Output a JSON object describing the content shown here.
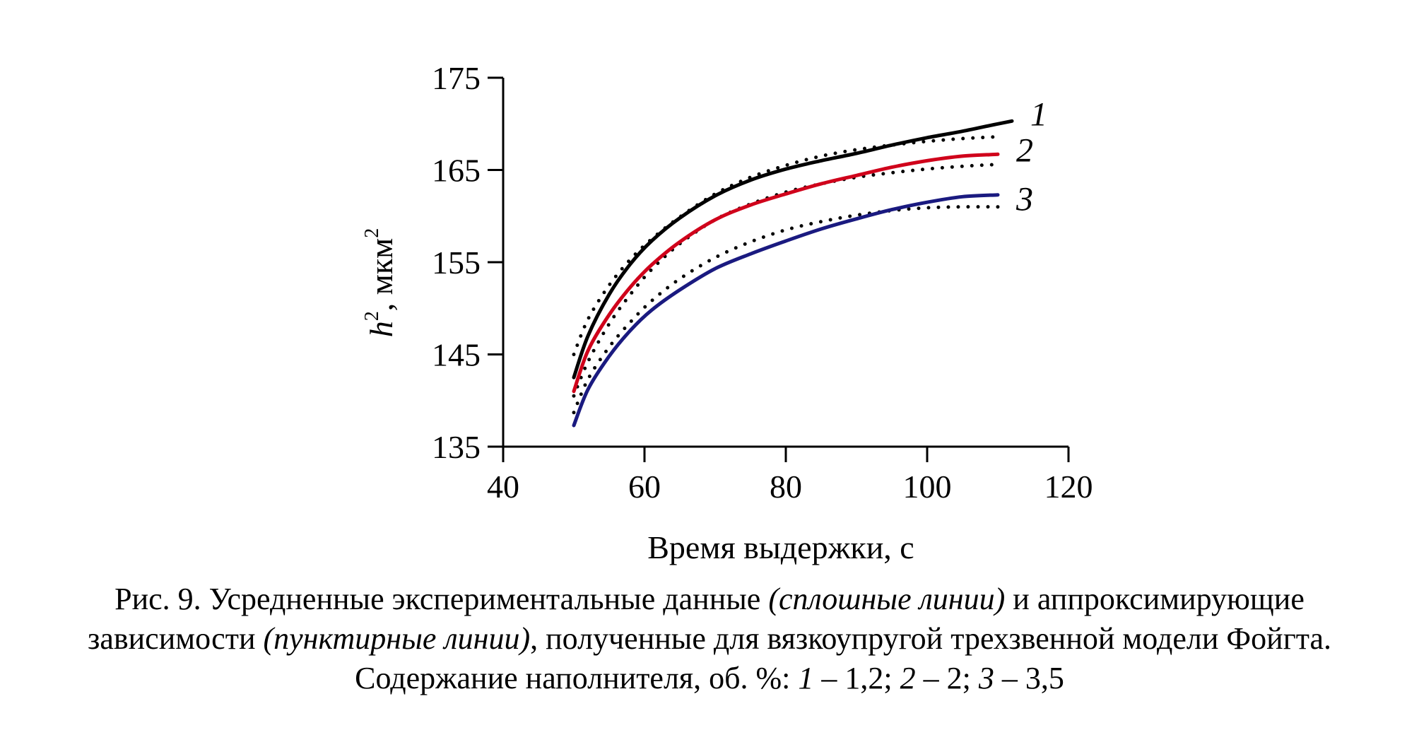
{
  "chart_data": {
    "type": "line",
    "title": "",
    "xlabel": "Время выдержки, с",
    "ylabel_base": "h",
    "ylabel_sup": "2",
    "ylabel_unit": ", мкм",
    "ylabel_unit_sup": "2",
    "xlim": [
      40,
      120
    ],
    "ylim": [
      135,
      175
    ],
    "xticks": [
      40,
      60,
      80,
      100,
      120
    ],
    "yticks": [
      135,
      145,
      155,
      165,
      175
    ],
    "grid": false,
    "series": [
      {
        "name": "1",
        "kind": "experimental",
        "color": "#000000",
        "x": [
          50,
          52,
          55,
          58,
          61,
          65,
          70,
          75,
          80,
          85,
          90,
          95,
          100,
          105,
          110,
          112
        ],
        "y": [
          142.5,
          147.0,
          151.5,
          154.8,
          157.3,
          159.8,
          162.2,
          163.9,
          165.1,
          166.0,
          166.8,
          167.7,
          168.5,
          169.2,
          170.0,
          170.3
        ]
      },
      {
        "name": "1",
        "kind": "approximation",
        "color": "#000000",
        "x": [
          50,
          52,
          55,
          58,
          61,
          65,
          70,
          75,
          80,
          85,
          90,
          95,
          100,
          105,
          110
        ],
        "y": [
          145.0,
          148.8,
          152.5,
          155.3,
          157.5,
          159.9,
          162.4,
          164.2,
          165.5,
          166.5,
          167.2,
          167.7,
          168.1,
          168.4,
          168.6
        ]
      },
      {
        "name": "2",
        "kind": "experimental",
        "color": "#d0021b",
        "x": [
          50,
          52,
          55,
          58,
          61,
          65,
          70,
          75,
          80,
          85,
          90,
          95,
          100,
          105,
          110
        ],
        "y": [
          141.0,
          145.4,
          149.3,
          152.3,
          154.7,
          157.2,
          159.6,
          161.2,
          162.4,
          163.5,
          164.4,
          165.3,
          166.0,
          166.5,
          166.7
        ]
      },
      {
        "name": "2",
        "kind": "approximation",
        "color": "#000000",
        "x": [
          50,
          52,
          55,
          58,
          61,
          65,
          70,
          75,
          80,
          85,
          90,
          95,
          100,
          105,
          110
        ],
        "y": [
          140.5,
          144.2,
          148.3,
          151.5,
          154.2,
          157.0,
          159.6,
          161.3,
          162.6,
          163.5,
          164.2,
          164.7,
          165.1,
          165.4,
          165.6
        ]
      },
      {
        "name": "3",
        "kind": "experimental",
        "color": "#1a1a80",
        "x": [
          50,
          52,
          55,
          58,
          61,
          65,
          70,
          75,
          80,
          85,
          90,
          95,
          100,
          105,
          110
        ],
        "y": [
          137.3,
          141.2,
          144.8,
          147.6,
          149.8,
          152.0,
          154.3,
          155.9,
          157.3,
          158.6,
          159.7,
          160.7,
          161.5,
          162.1,
          162.3
        ]
      },
      {
        "name": "3",
        "kind": "approximation",
        "color": "#000000",
        "x": [
          50,
          52,
          55,
          58,
          61,
          65,
          70,
          75,
          80,
          85,
          90,
          95,
          100,
          105,
          110
        ],
        "y": [
          138.7,
          142.3,
          145.8,
          148.5,
          150.8,
          153.2,
          155.5,
          157.2,
          158.5,
          159.4,
          160.1,
          160.6,
          160.9,
          161.0,
          161.0
        ]
      }
    ],
    "series_labels": [
      "1",
      "2",
      "3"
    ]
  },
  "caption": {
    "line1_a": "Рис. 9. Усредненные экспериментальные данные ",
    "line1_b": "(сплошные линии)",
    "line1_c": " и аппроксимирующие",
    "line2_a": "зависимости ",
    "line2_b": "(пунктирные линии)",
    "line2_c": ", полученные для вязкоупругой трехзвенной модели Фойгта.",
    "line3_a": "Содержание наполнителя, об. %: ",
    "line3_b": "1",
    "line3_c": " – 1,2; ",
    "line3_d": "2",
    "line3_e": " – 2; ",
    "line3_f": "3",
    "line3_g": " – 3,5"
  }
}
